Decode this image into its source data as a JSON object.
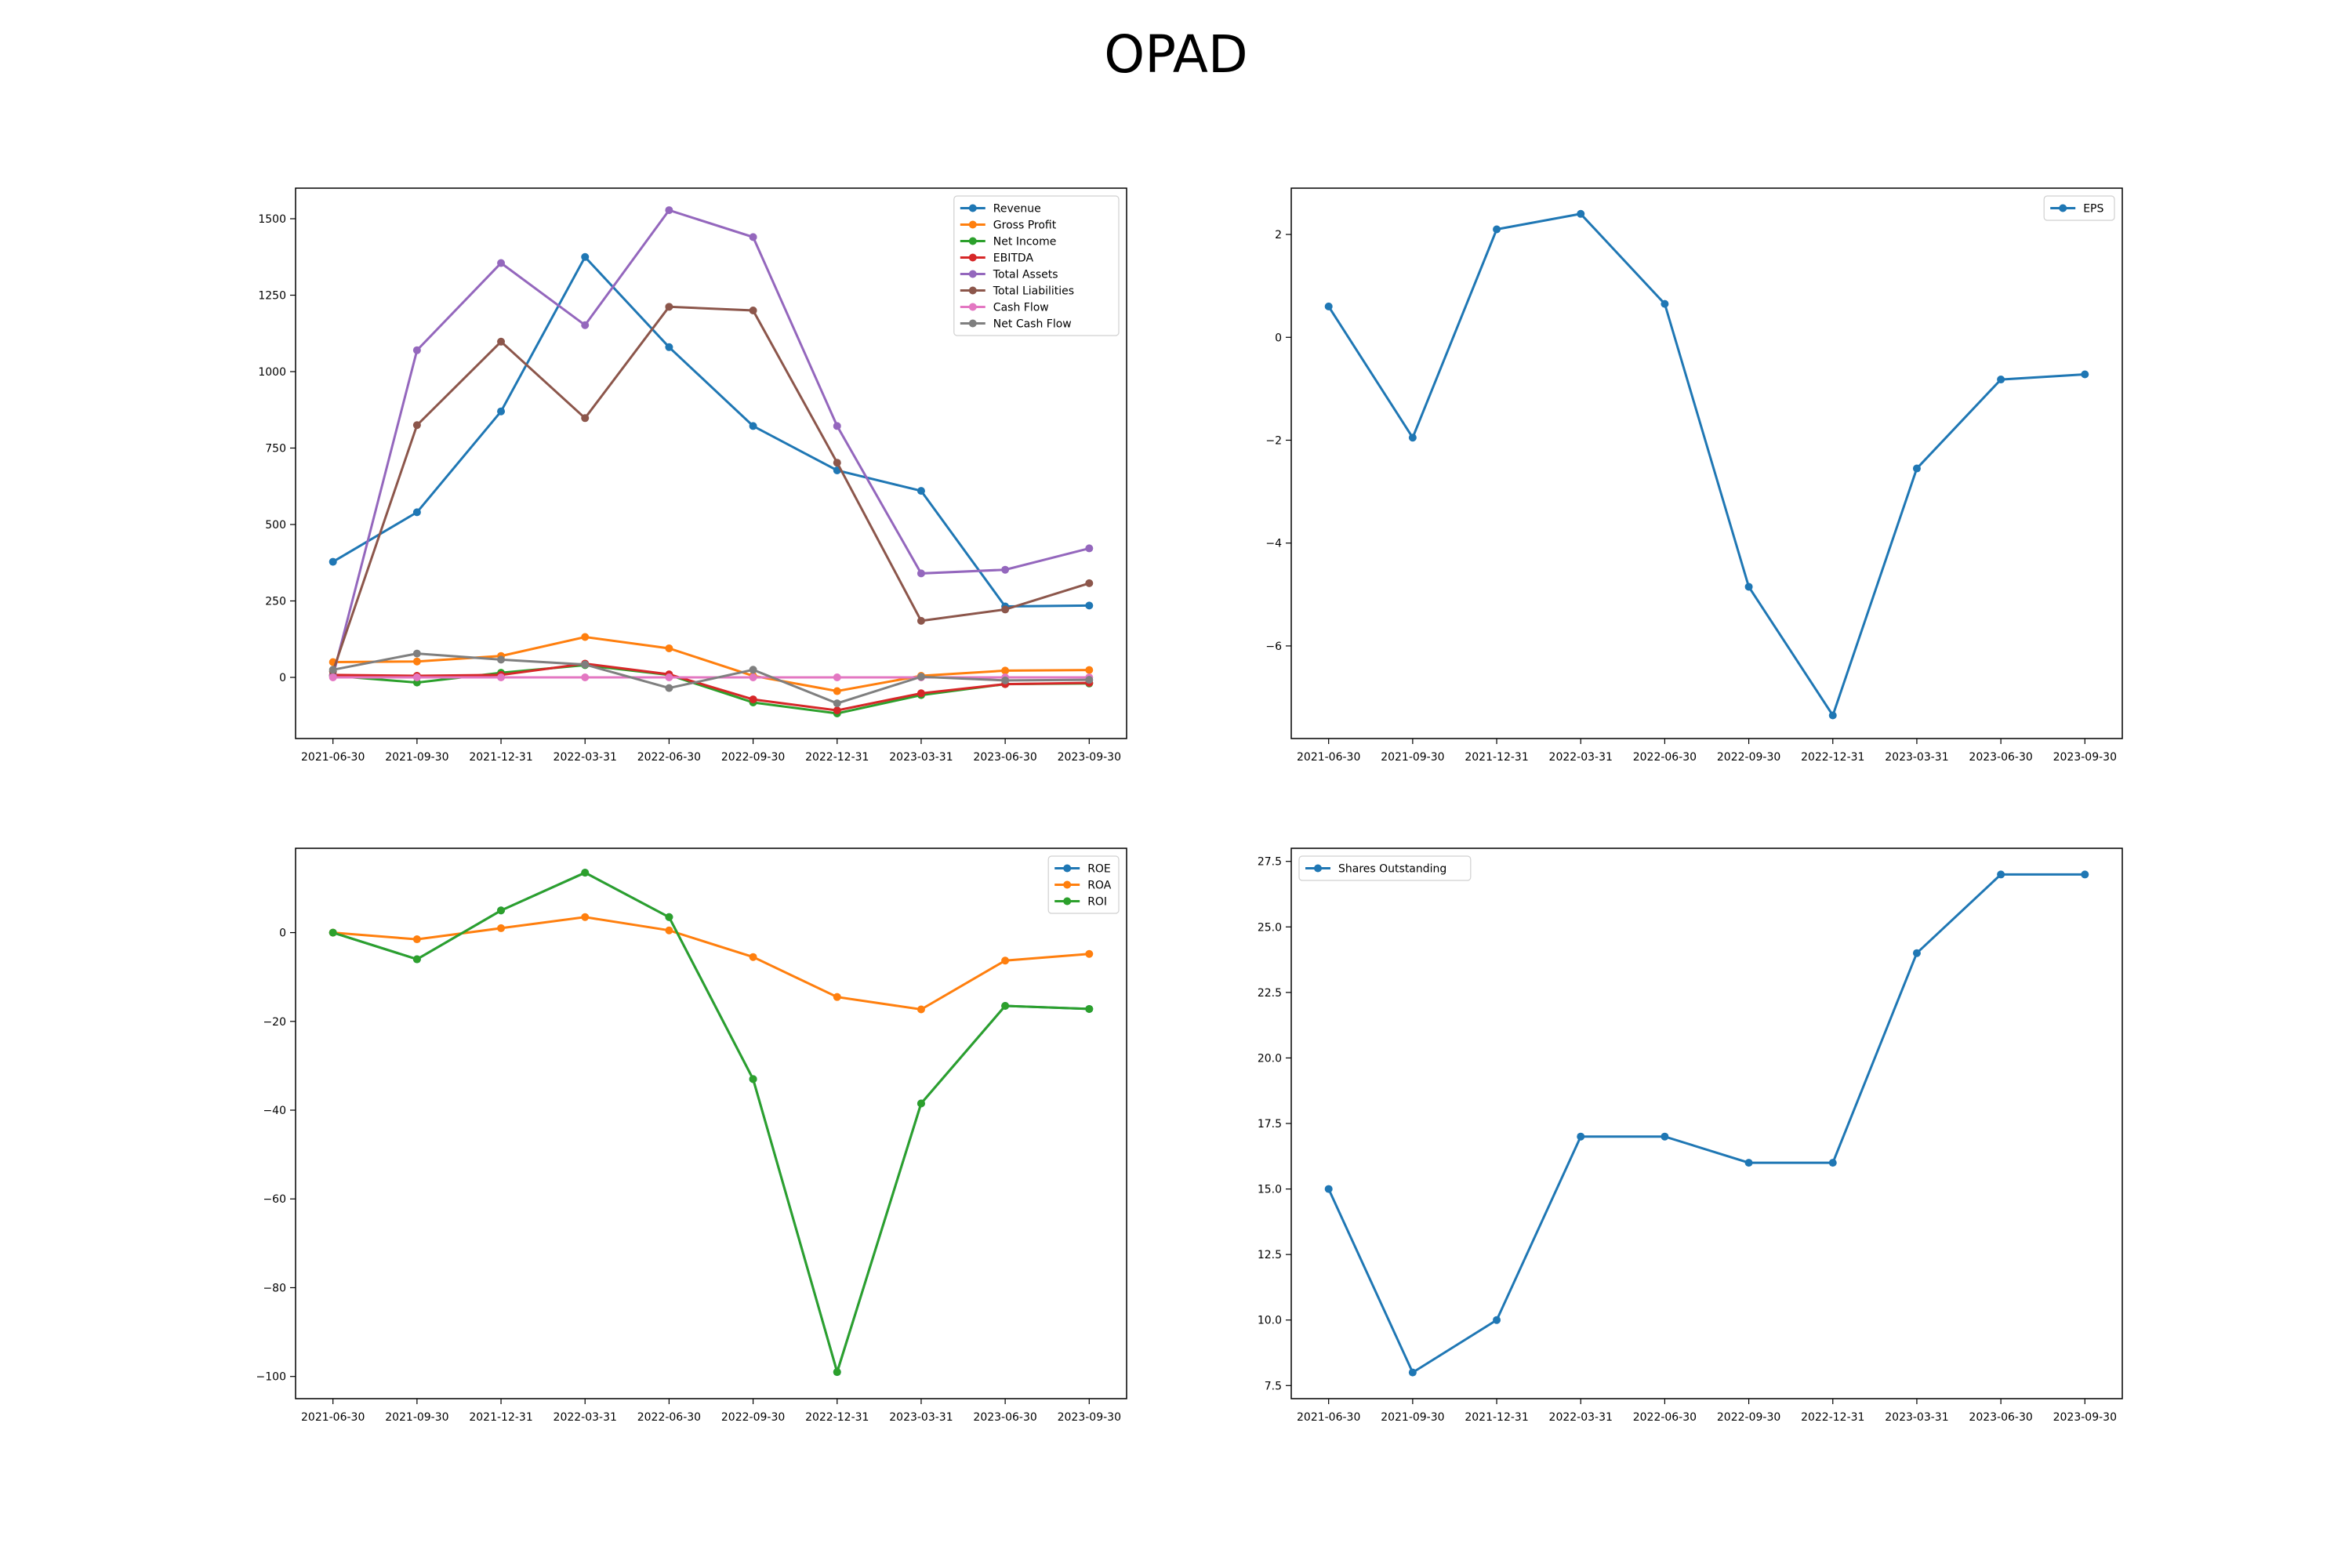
{
  "figure": {
    "title": "OPAD"
  },
  "chart_data": [
    {
      "type": "line",
      "x": [
        "2021-06-30",
        "2021-09-30",
        "2021-12-31",
        "2022-03-31",
        "2022-06-30",
        "2022-09-30",
        "2022-12-31",
        "2023-03-31",
        "2023-06-30",
        "2023-09-30"
      ],
      "xlabel": "",
      "ylabel": "",
      "ylim": [
        -200,
        1600
      ],
      "yticks": [
        0,
        250,
        500,
        750,
        1000,
        1250,
        1500
      ],
      "legend": "upper-right",
      "series": [
        {
          "name": "Revenue",
          "color": "#1f77b4",
          "values": [
            378,
            540,
            870,
            1375,
            1080,
            822,
            677,
            610,
            232,
            235
          ]
        },
        {
          "name": "Gross Profit",
          "color": "#ff7f0e",
          "values": [
            50,
            52,
            70,
            132,
            95,
            5,
            -45,
            5,
            22,
            24
          ]
        },
        {
          "name": "Net Income",
          "color": "#2ca02c",
          "values": [
            5,
            -17,
            15,
            40,
            8,
            -82,
            -118,
            -58,
            -22,
            -20
          ]
        },
        {
          "name": "EBITDA",
          "color": "#d62728",
          "values": [
            8,
            5,
            8,
            45,
            10,
            -72,
            -108,
            -52,
            -22,
            -18
          ]
        },
        {
          "name": "Total Assets",
          "color": "#9467bd",
          "values": [
            5,
            1070,
            1355,
            1152,
            1528,
            1440,
            822,
            340,
            352,
            422
          ]
        },
        {
          "name": "Total Liabilities",
          "color": "#8c564b",
          "values": [
            20,
            825,
            1098,
            848,
            1212,
            1200,
            702,
            185,
            222,
            308
          ]
        },
        {
          "name": "Cash Flow",
          "color": "#e377c2",
          "values": [
            0,
            0,
            0,
            0,
            0,
            0,
            0,
            0,
            0,
            0
          ]
        },
        {
          "name": "Net Cash Flow",
          "color": "#7f7f7f",
          "values": [
            25,
            78,
            58,
            42,
            -35,
            25,
            -85,
            2,
            -10,
            -8
          ]
        }
      ]
    },
    {
      "type": "line",
      "x": [
        "2021-06-30",
        "2021-09-30",
        "2021-12-31",
        "2022-03-31",
        "2022-06-30",
        "2022-09-30",
        "2022-12-31",
        "2023-03-31",
        "2023-06-30",
        "2023-09-30"
      ],
      "xlabel": "",
      "ylabel": "",
      "ylim": [
        -7.8,
        2.9
      ],
      "yticks": [
        -6,
        -4,
        -2,
        0,
        2
      ],
      "legend": "upper-right",
      "series": [
        {
          "name": "EPS",
          "color": "#1f77b4",
          "values": [
            0.6,
            -1.95,
            2.1,
            2.4,
            0.65,
            -4.85,
            -7.35,
            -2.55,
            -0.82,
            -0.72
          ]
        }
      ]
    },
    {
      "type": "line",
      "x": [
        "2021-06-30",
        "2021-09-30",
        "2021-12-31",
        "2022-03-31",
        "2022-06-30",
        "2022-09-30",
        "2022-12-31",
        "2023-03-31",
        "2023-06-30",
        "2023-09-30"
      ],
      "xlabel": "",
      "ylabel": "",
      "ylim": [
        -105,
        19
      ],
      "yticks": [
        -100,
        -80,
        -60,
        -40,
        -20,
        0
      ],
      "legend": "upper-right",
      "series": [
        {
          "name": "ROE",
          "color": "#1f77b4",
          "values": [
            0,
            -6,
            5,
            13.5,
            3.5,
            -33,
            -99,
            -38.5,
            -16.5,
            -17.2
          ]
        },
        {
          "name": "ROA",
          "color": "#ff7f0e",
          "values": [
            0,
            -1.5,
            1,
            3.5,
            0.5,
            -5.5,
            -14.5,
            -17.3,
            -6.3,
            -4.8
          ]
        },
        {
          "name": "ROI",
          "color": "#2ca02c",
          "values": [
            0,
            -6,
            5,
            13.5,
            3.5,
            -33,
            -99,
            -38.5,
            -16.5,
            -17.2
          ]
        }
      ]
    },
    {
      "type": "line",
      "x": [
        "2021-06-30",
        "2021-09-30",
        "2021-12-31",
        "2022-03-31",
        "2022-06-30",
        "2022-09-30",
        "2022-12-31",
        "2023-03-31",
        "2023-06-30",
        "2023-09-30"
      ],
      "xlabel": "",
      "ylabel": "",
      "ylim": [
        7,
        28
      ],
      "yticks": [
        7.5,
        10.0,
        12.5,
        15.0,
        17.5,
        20.0,
        22.5,
        25.0,
        27.5
      ],
      "legend": "upper-left",
      "series": [
        {
          "name": "Shares Outstanding",
          "color": "#1f77b4",
          "values": [
            15,
            8,
            10,
            17,
            17,
            16,
            16,
            24,
            27,
            27
          ]
        }
      ]
    }
  ]
}
